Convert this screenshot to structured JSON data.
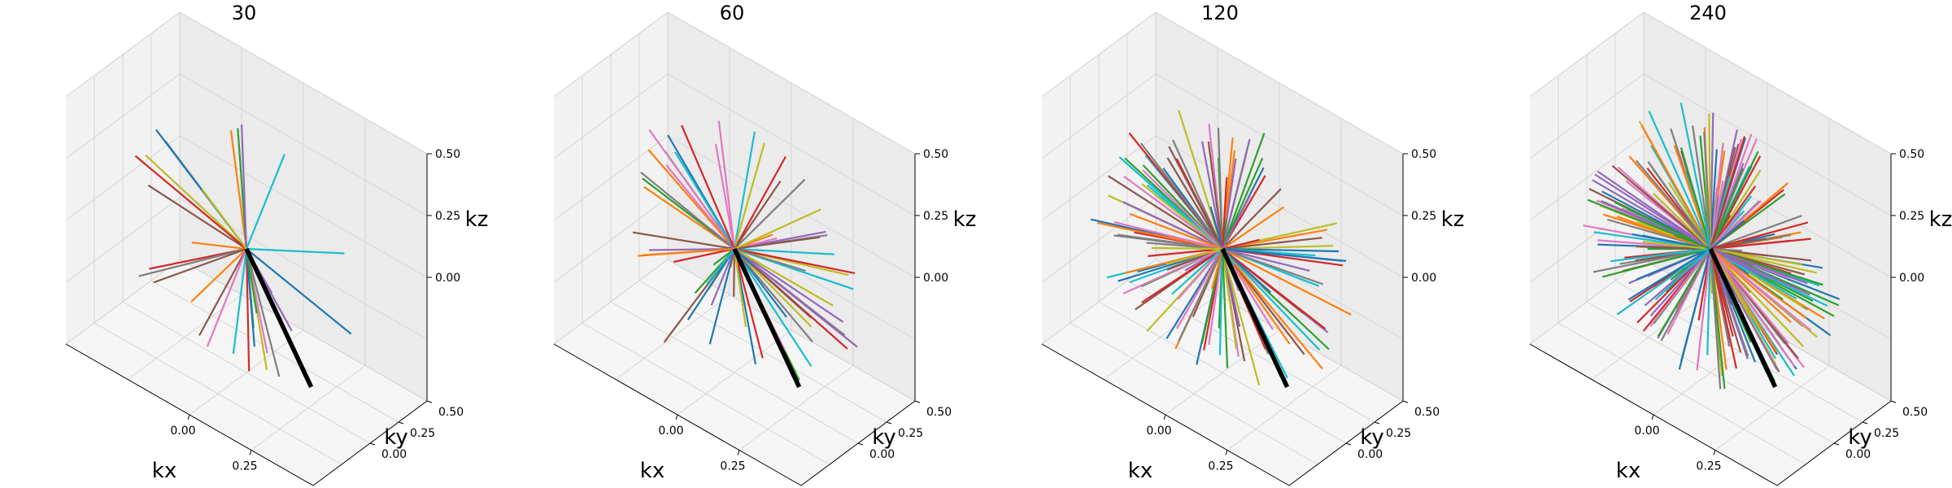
{
  "chart_data": [
    {
      "type": "line3d",
      "title": "30",
      "n_spokes": 30,
      "highlight_color": "#000000",
      "xlabel": "kx",
      "ylabel": "ky",
      "zlabel": "kz",
      "xticks": [
        "0.00",
        "0.25"
      ],
      "yticks": [
        "0.00",
        "0.25",
        "0.50"
      ],
      "zticks": [
        "0.00",
        "0.25",
        "0.50"
      ],
      "xlim": [
        -0.5,
        0.5
      ],
      "ylim": [
        -0.5,
        0.5
      ],
      "zlim": [
        -0.5,
        0.5
      ],
      "spoke_length": 0.5,
      "grid": true,
      "legend": "none"
    },
    {
      "type": "line3d",
      "title": "60",
      "n_spokes": 60,
      "highlight_color": "#000000",
      "xlabel": "kx",
      "ylabel": "ky",
      "zlabel": "kz",
      "xticks": [
        "0.00",
        "0.25"
      ],
      "yticks": [
        "0.00",
        "0.25",
        "0.50"
      ],
      "zticks": [
        "0.00",
        "0.25",
        "0.50"
      ],
      "xlim": [
        -0.5,
        0.5
      ],
      "ylim": [
        -0.5,
        0.5
      ],
      "zlim": [
        -0.5,
        0.5
      ],
      "spoke_length": 0.5,
      "grid": true,
      "legend": "none"
    },
    {
      "type": "line3d",
      "title": "120",
      "n_spokes": 120,
      "highlight_color": "#000000",
      "xlabel": "kx",
      "ylabel": "ky",
      "zlabel": "kz",
      "xticks": [
        "0.00",
        "0.25"
      ],
      "yticks": [
        "0.00",
        "0.25",
        "0.50"
      ],
      "zticks": [
        "0.00",
        "0.25",
        "0.50"
      ],
      "xlim": [
        -0.5,
        0.5
      ],
      "ylim": [
        -0.5,
        0.5
      ],
      "zlim": [
        -0.5,
        0.5
      ],
      "spoke_length": 0.5,
      "grid": true,
      "legend": "none"
    },
    {
      "type": "line3d",
      "title": "240",
      "n_spokes": 240,
      "highlight_color": "#000000",
      "xlabel": "kx",
      "ylabel": "ky",
      "zlabel": "kz",
      "xticks": [
        "0.00",
        "0.25"
      ],
      "yticks": [
        "0.00",
        "0.25",
        "0.50"
      ],
      "zticks": [
        "0.00",
        "0.25",
        "0.50"
      ],
      "xlim": [
        -0.5,
        0.5
      ],
      "ylim": [
        -0.5,
        0.5
      ],
      "zlim": [
        -0.5,
        0.5
      ],
      "spoke_length": 0.5,
      "grid": true,
      "legend": "none"
    }
  ],
  "colors": {
    "cycle": [
      "#1f77b4",
      "#ff7f0e",
      "#2ca02c",
      "#d62728",
      "#9467bd",
      "#8c564b",
      "#e377c2",
      "#7f7f7f",
      "#bcbd22",
      "#17becf"
    ],
    "pane_left": "#f2f2f2",
    "pane_right": "#ebebeb",
    "pane_floor": "#f5f5f5",
    "grid": "#d6d6d6"
  }
}
